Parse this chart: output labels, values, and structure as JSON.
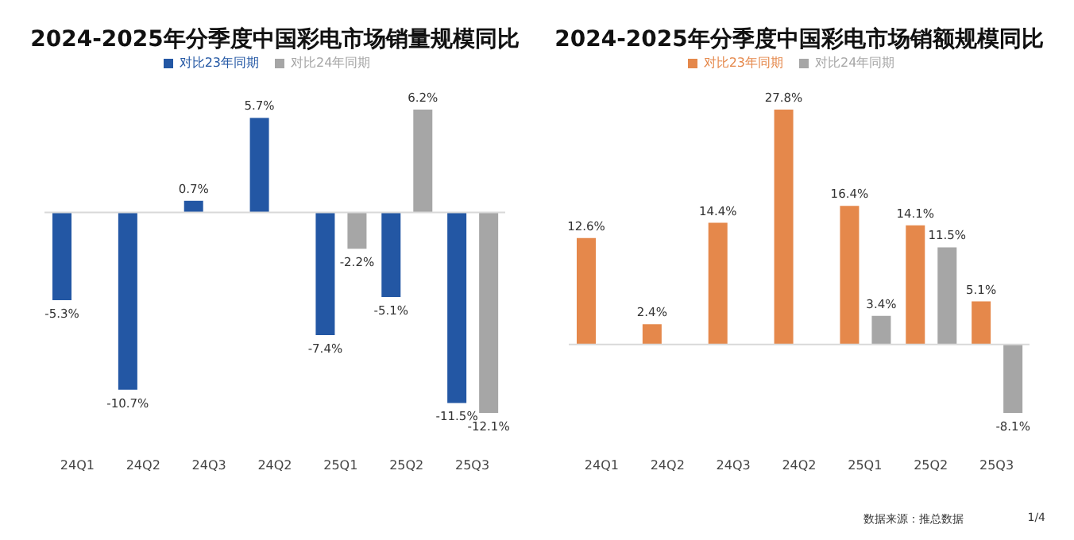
{
  "chart_data": [
    {
      "type": "bar",
      "title": "2024-2025年分季度中国彩电市场销量规模同比",
      "categories": [
        "24Q1",
        "24Q2",
        "24Q3",
        "24Q2",
        "25Q1",
        "25Q2",
        "25Q3"
      ],
      "legend": "top",
      "series": [
        {
          "name": "对比23年同期",
          "color": "#2357a4",
          "values": [
            -5.3,
            -10.7,
            0.7,
            5.7,
            -7.4,
            -5.1,
            -11.5
          ],
          "value_labels": [
            "-5.3%",
            "-10.7%",
            "0.7%",
            "5.7%",
            "-7.4%",
            "-5.1%",
            "-11.5%"
          ]
        },
        {
          "name": "对比24年同期",
          "color": "#a6a6a6",
          "values": [
            null,
            null,
            null,
            null,
            -2.2,
            6.2,
            -12.1
          ],
          "value_labels": [
            null,
            null,
            null,
            null,
            "-2.2%",
            "6.2%",
            "-12.1%"
          ]
        }
      ]
    },
    {
      "type": "bar",
      "title": "2024-2025年分季度中国彩电市场销额规模同比",
      "categories": [
        "24Q1",
        "24Q2",
        "24Q3",
        "24Q2",
        "25Q1",
        "25Q2",
        "25Q3"
      ],
      "legend": "top",
      "series": [
        {
          "name": "对比23年同期",
          "color": "#e5884b",
          "values": [
            12.6,
            2.4,
            14.4,
            27.8,
            16.4,
            14.1,
            5.1
          ],
          "value_labels": [
            "12.6%",
            "2.4%",
            "14.4%",
            "27.8%",
            "16.4%",
            "14.1%",
            "5.1%"
          ]
        },
        {
          "name": "对比24年同期",
          "color": "#a6a6a6",
          "values": [
            null,
            null,
            null,
            null,
            3.4,
            11.5,
            -8.1
          ],
          "value_labels": [
            null,
            null,
            null,
            null,
            "3.4%",
            "11.5%",
            "-8.1%"
          ]
        }
      ],
      "annotations": [
        "数据来源：推总数据",
        "1/4"
      ]
    }
  ]
}
